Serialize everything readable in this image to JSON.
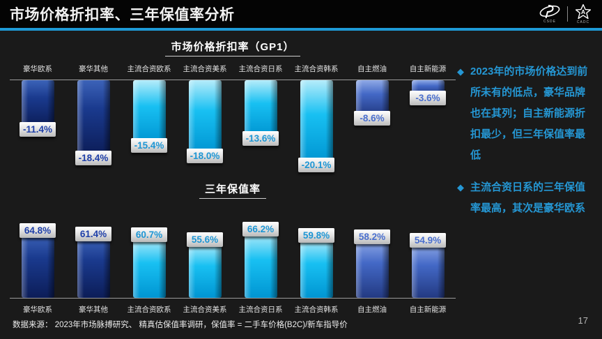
{
  "header": {
    "title": "市场价格折扣率、三年保值率分析",
    "logos": [
      {
        "icon": "ellipse-swoosh-logo",
        "caption": "CSDE"
      },
      {
        "icon": "star-logo",
        "caption": "CADC"
      }
    ],
    "accent_color": "#1e9ad6"
  },
  "chart_data": [
    {
      "type": "bar",
      "title": "市场价格折扣率（GP1）",
      "direction": "down",
      "categories": [
        "豪华欧系",
        "豪华其他",
        "主流合资欧系",
        "主流合资美系",
        "主流合资日系",
        "主流合资韩系",
        "自主燃油",
        "自主新能源"
      ],
      "values": [
        -11.4,
        -18.4,
        -15.4,
        -18.0,
        -13.6,
        -20.1,
        -8.6,
        -3.6
      ],
      "labels": [
        "-11.4%",
        "-18.4%",
        "-15.4%",
        "-18.0%",
        "-13.6%",
        "-20.1%",
        "-8.6%",
        "-3.6%"
      ],
      "colors": [
        "navy",
        "navy",
        "cyan",
        "cyan",
        "cyan",
        "cyan",
        "royal",
        "royal"
      ],
      "ylim": [
        -22,
        0
      ],
      "grid": false,
      "legend": "none"
    },
    {
      "type": "bar",
      "title": "三年保值率",
      "direction": "up",
      "categories": [
        "豪华欧系",
        "豪华其他",
        "主流合资欧系",
        "主流合资美系",
        "主流合资日系",
        "主流合资韩系",
        "自主燃油",
        "自主新能源"
      ],
      "values": [
        64.8,
        61.4,
        60.7,
        55.6,
        66.2,
        59.8,
        58.2,
        54.9
      ],
      "labels": [
        "64.8%",
        "61.4%",
        "60.7%",
        "55.6%",
        "66.2%",
        "59.8%",
        "58.2%",
        "54.9%"
      ],
      "colors": [
        "navy",
        "navy",
        "cyan",
        "cyan",
        "cyan",
        "cyan",
        "royal",
        "royal"
      ],
      "ylim": [
        0,
        70
      ],
      "grid": false,
      "legend": "none"
    }
  ],
  "palette": {
    "navy_bar": "#16317f",
    "cyan_bar": "#00b4ee",
    "royal_bar": "#4368c6",
    "navy_label_text": "#1e3fa8",
    "cyan_label_text": "#1e96d4",
    "royal_label_text": "#4a6fce",
    "bullet_text": "#2597d4",
    "accent_line": "#1e9ad6"
  },
  "right_panel": {
    "bullets": [
      {
        "marker": "◆",
        "text": "2023年的市场价格达到前所未有的低点，豪华品牌也在其列；自主新能源折扣最少，但三年保值率最低"
      },
      {
        "marker": "◆",
        "text": "主流合资日系的三年保值率最高，其次是豪华欧系"
      }
    ]
  },
  "footer": {
    "source": "数据来源： 2023年市场脉搏研究、 精真估保值率调研，保值率 = 二手车价格(B2C)/新车指导价",
    "page": "17"
  }
}
